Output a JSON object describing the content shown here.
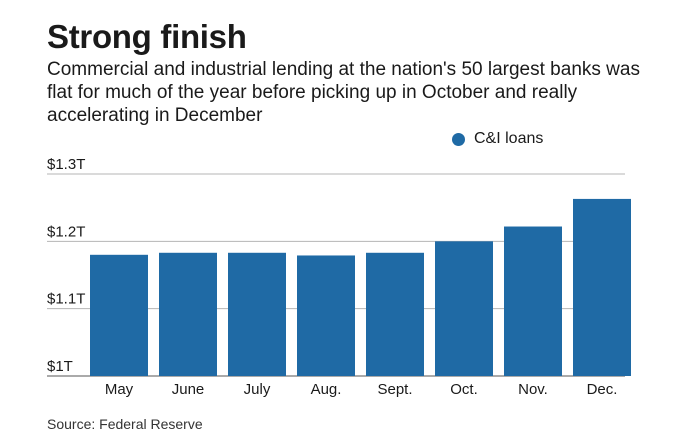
{
  "title": "Strong finish",
  "subtitle": "Commercial and industrial lending at the nation's 50 largest banks was flat for much of the year before picking up in October and really accelerating in December",
  "source": "Source: Federal Reserve",
  "chart_data": {
    "type": "bar",
    "categories": [
      "May",
      "June",
      "July",
      "Aug.",
      "Sept.",
      "Oct.",
      "Nov.",
      "Dec."
    ],
    "series": [
      {
        "name": "C&I loans",
        "color": "#1f6aa5",
        "values": [
          1.18,
          1.183,
          1.183,
          1.179,
          1.183,
          1.2,
          1.222,
          1.263
        ]
      }
    ],
    "ylim": [
      1.0,
      1.3
    ],
    "yticks": [
      1.0,
      1.1,
      1.2,
      1.3
    ],
    "ytick_labels": [
      "$1T",
      "$1.1T",
      "$1.2T",
      "$1.3T"
    ],
    "grid": true,
    "legend": "top-right"
  }
}
